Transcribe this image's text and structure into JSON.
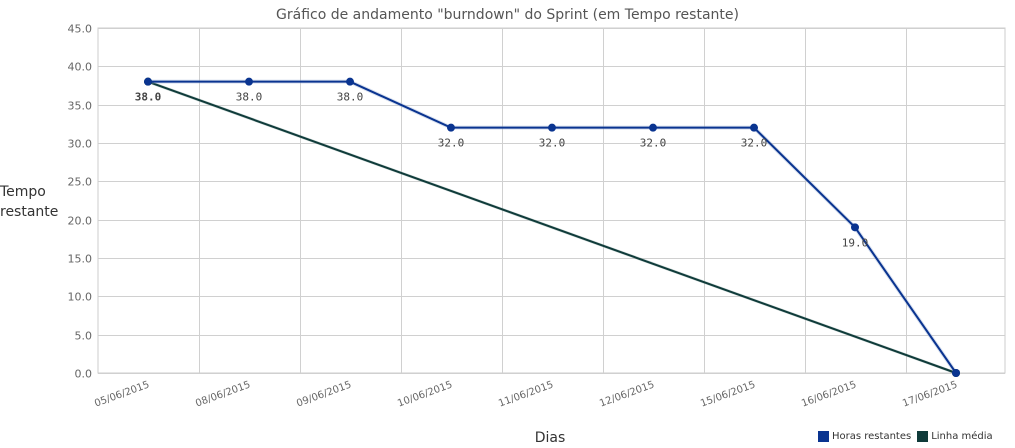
{
  "chart_data": {
    "type": "line",
    "title": "Gráfico de andamento \"burndown\" do Sprint (em Tempo restante)",
    "ylabel_lines": [
      "Tempo",
      "restante"
    ],
    "xlabel": "Dias",
    "categories": [
      "05/06/2015",
      "08/06/2015",
      "09/06/2015",
      "10/06/2015",
      "11/06/2015",
      "12/06/2015",
      "15/06/2015",
      "16/06/2015",
      "17/06/2015"
    ],
    "ylim": [
      0,
      45
    ],
    "yticks": [
      "0.0",
      "5.0",
      "10.0",
      "15.0",
      "20.0",
      "25.0",
      "30.0",
      "35.0",
      "40.0",
      "45.0"
    ],
    "grid": true,
    "legend_position": "bottom-right",
    "series": [
      {
        "name": "Horas restantes",
        "color": "#0a3490",
        "values": [
          38,
          38,
          38,
          32,
          32,
          32,
          32,
          19,
          0
        ],
        "data_labels": [
          "38.0",
          "38.0",
          "38.0",
          "32.0",
          "32.0",
          "32.0",
          "32.0",
          "19.0",
          ""
        ]
      },
      {
        "name": "Linha média",
        "color": "#0f3b3a",
        "points": [
          {
            "x": "05/06/2015",
            "y": 38
          },
          {
            "x": "17/06/2015",
            "y": 0
          }
        ]
      }
    ]
  }
}
